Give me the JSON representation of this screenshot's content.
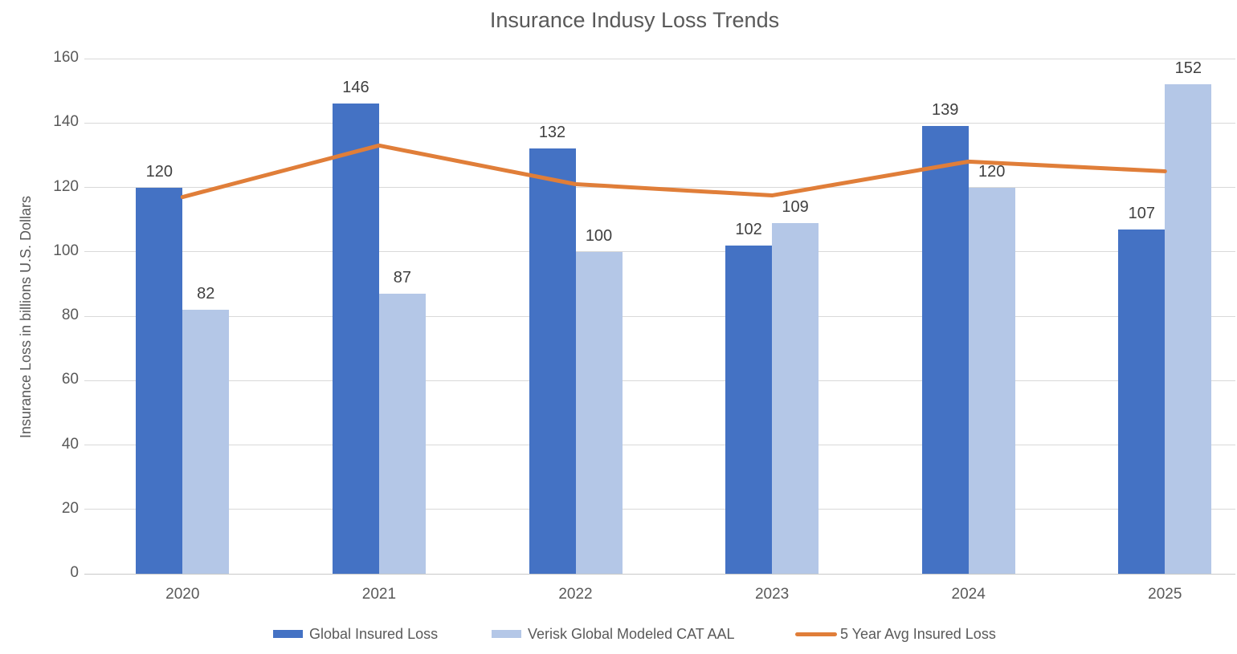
{
  "title": "Insurance Indusy Loss Trends",
  "chart_data": {
    "type": "bar",
    "subtype": "grouped bar chart with line overlay (combo)",
    "categories": [
      "2020",
      "2021",
      "2022",
      "2023",
      "2024",
      "2025"
    ],
    "series": [
      {
        "name": "Global Insured Loss",
        "type": "bar",
        "color": "#4472C4",
        "values": [
          120,
          146,
          132,
          102,
          139,
          107
        ]
      },
      {
        "name": "Verisk Global Modeled CAT AAL",
        "type": "bar",
        "color": "#B4C7E7",
        "values": [
          82,
          87,
          100,
          109,
          120,
          152
        ]
      },
      {
        "name": "5 Year Avg Insured Loss",
        "type": "line",
        "color": "#E07E39",
        "values": [
          117,
          133,
          121,
          117.5,
          128,
          125
        ]
      }
    ],
    "data_labels_shown_for": [
      "Global Insured Loss",
      "Verisk Global Modeled CAT AAL"
    ],
    "xlabel": "",
    "ylabel": "Insurance Loss in billions U.S. Dollars",
    "ylim": [
      0,
      160
    ],
    "yticks": [
      0,
      20,
      40,
      60,
      80,
      100,
      120,
      140,
      160
    ],
    "grid": "horizontal",
    "gridline_color": "#D9D9D9",
    "text_color": "#595959",
    "data_label_color": "#404040",
    "legend_position": "bottom"
  }
}
